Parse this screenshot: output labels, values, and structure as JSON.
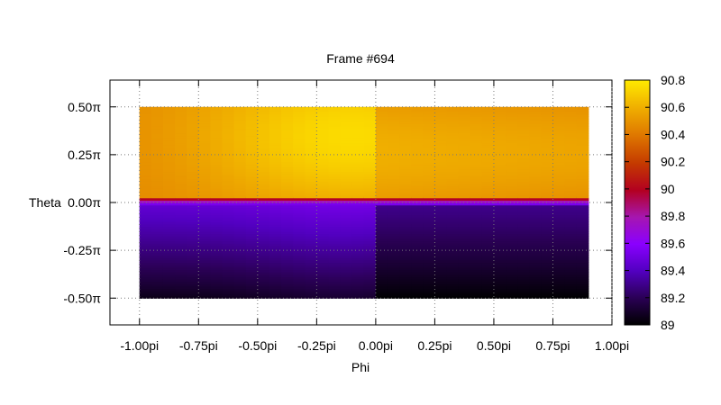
{
  "chart_data": {
    "type": "heatmap",
    "title": "Frame #694",
    "xlabel": "Phi",
    "ylabel": "Theta",
    "xlim": [
      -1.125,
      1.0
    ],
    "ylim": [
      -0.64,
      0.64
    ],
    "x_ticks": [
      {
        "value": -1.0,
        "label": "-1.00pi"
      },
      {
        "value": -0.75,
        "label": "-0.75pi"
      },
      {
        "value": -0.5,
        "label": "-0.50pi"
      },
      {
        "value": -0.25,
        "label": "-0.25pi"
      },
      {
        "value": 0.0,
        "label": "0.00pi"
      },
      {
        "value": 0.25,
        "label": "0.25pi"
      },
      {
        "value": 0.5,
        "label": "0.50pi"
      },
      {
        "value": 0.75,
        "label": "0.75pi"
      },
      {
        "value": 1.0,
        "label": "1.00pi"
      }
    ],
    "y_ticks": [
      {
        "value": 0.5,
        "label": "0.50π"
      },
      {
        "value": 0.25,
        "label": "0.25π"
      },
      {
        "value": 0.0,
        "label": "0.00π"
      },
      {
        "value": -0.25,
        "label": "-0.25π"
      },
      {
        "value": -0.5,
        "label": "-0.50π"
      }
    ],
    "colorbar": {
      "range": [
        89,
        90.8
      ],
      "ticks": [
        {
          "value": 90.8,
          "label": "90.8"
        },
        {
          "value": 90.6,
          "label": "90.6"
        },
        {
          "value": 90.4,
          "label": "90.4"
        },
        {
          "value": 90.2,
          "label": "90.2"
        },
        {
          "value": 90.0,
          "label": "90"
        },
        {
          "value": 89.8,
          "label": "89.8"
        },
        {
          "value": 89.6,
          "label": "89.6"
        },
        {
          "value": 89.4,
          "label": "89.4"
        },
        {
          "value": 89.2,
          "label": "89.2"
        },
        {
          "value": 89.0,
          "label": "89"
        }
      ]
    },
    "data_extent": {
      "phi": [
        -1.0,
        0.9
      ],
      "theta": [
        -0.5,
        0.5
      ]
    },
    "grid": true,
    "colormap": "black-purple-red-orange-yellow",
    "approximate_field": {
      "left_upper_peak": {
        "phi": -0.1,
        "theta": 0.35,
        "value": 90.75
      },
      "left_upper_edge_value": 90.45,
      "right_upper_value_range": [
        90.45,
        90.6
      ],
      "left_lower_value_range": [
        89.05,
        89.45
      ],
      "right_lower_value_range": [
        89.0,
        89.3
      ],
      "boundary_band_value": 90.1
    }
  }
}
